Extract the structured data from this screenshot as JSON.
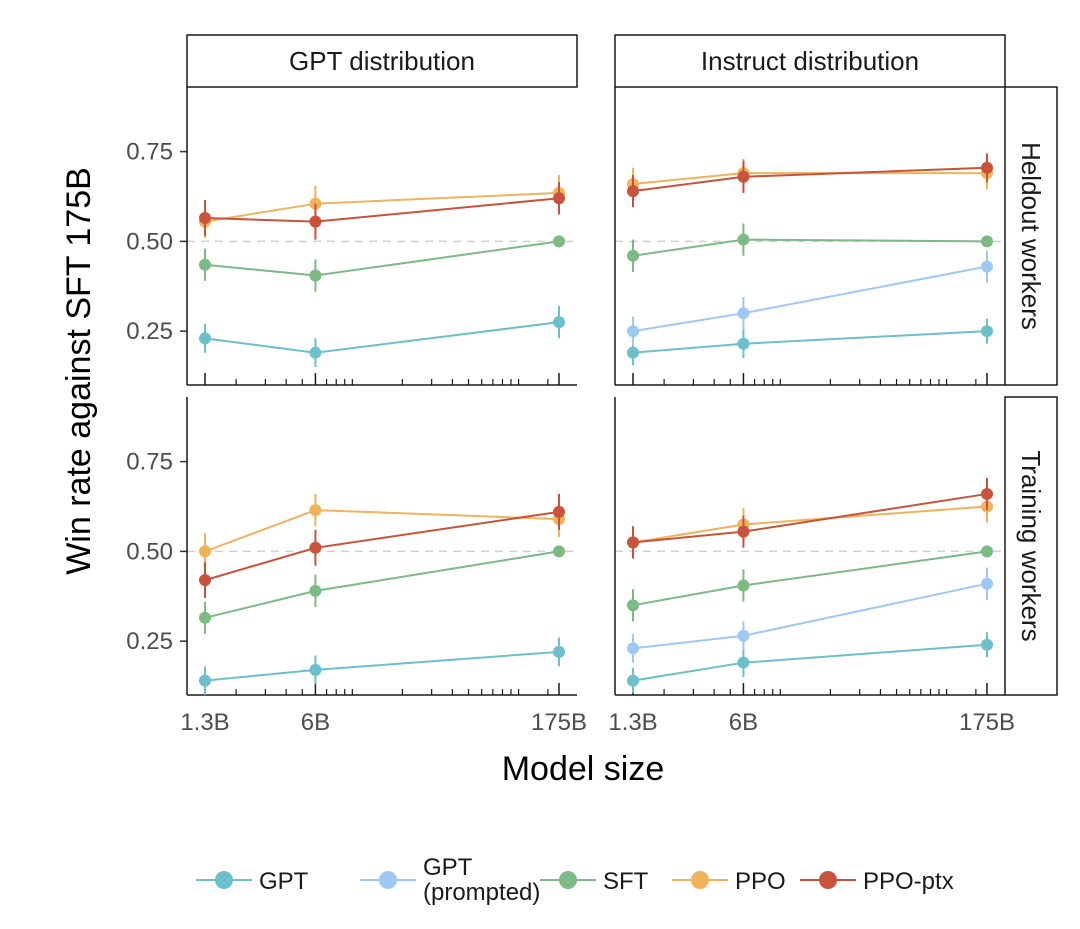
{
  "chart_data": {
    "type": "line",
    "layout": "facet-grid 2x2",
    "xlabel": "Model size",
    "ylabel": "Win rate against SFT 175B",
    "x_scale": "log",
    "x_ticks": [
      "1.3B",
      "6B",
      "175B"
    ],
    "y_ticks": [
      "0.25",
      "0.50",
      "0.75"
    ],
    "ylim": [
      0.1,
      0.93
    ],
    "reference_line": 0.5,
    "columns": [
      "GPT distribution",
      "Instruct distribution"
    ],
    "rows": [
      "Heldout workers",
      "Training workers"
    ],
    "legend": {
      "position": "bottom",
      "entries": [
        {
          "key": "GPT",
          "lines": [
            "GPT"
          ]
        },
        {
          "key": "GPT (prompted)",
          "lines": [
            "GPT",
            "(prompted)"
          ]
        },
        {
          "key": "SFT",
          "lines": [
            "SFT"
          ]
        },
        {
          "key": "PPO",
          "lines": [
            "PPO"
          ]
        },
        {
          "key": "PPO-ptx",
          "lines": [
            "PPO-ptx"
          ]
        }
      ]
    },
    "colors": {
      "GPT": "#6cc0cc",
      "GPT (prompted)": "#9ec9f5",
      "SFT": "#7cba84",
      "PPO": "#f0b25a",
      "PPO-ptx": "#c8533a"
    },
    "panels": [
      {
        "col": "GPT distribution",
        "row": "Heldout workers",
        "series": [
          {
            "key": "GPT",
            "x": [
              "1.3B",
              "6B",
              "175B"
            ],
            "y": [
              0.23,
              0.19,
              0.275
            ],
            "err": [
              0.04,
              0.04,
              0.045
            ]
          },
          {
            "key": "SFT",
            "x": [
              "1.3B",
              "6B",
              "175B"
            ],
            "y": [
              0.435,
              0.405,
              0.5
            ],
            "err": [
              0.045,
              0.045,
              0.0
            ]
          },
          {
            "key": "PPO",
            "x": [
              "1.3B",
              "6B",
              "175B"
            ],
            "y": [
              0.555,
              0.605,
              0.635
            ],
            "err": [
              0.045,
              0.05,
              0.05
            ]
          },
          {
            "key": "PPO-ptx",
            "x": [
              "1.3B",
              "6B",
              "175B"
            ],
            "y": [
              0.565,
              0.555,
              0.62
            ],
            "err": [
              0.05,
              0.05,
              0.045
            ]
          }
        ]
      },
      {
        "col": "Instruct distribution",
        "row": "Heldout workers",
        "series": [
          {
            "key": "GPT",
            "x": [
              "1.3B",
              "6B",
              "175B"
            ],
            "y": [
              0.19,
              0.215,
              0.25
            ],
            "err": [
              0.035,
              0.04,
              0.035
            ]
          },
          {
            "key": "GPT (prompted)",
            "x": [
              "1.3B",
              "6B",
              "175B"
            ],
            "y": [
              0.25,
              0.3,
              0.43
            ],
            "err": [
              0.04,
              0.045,
              0.045
            ]
          },
          {
            "key": "SFT",
            "x": [
              "1.3B",
              "6B",
              "175B"
            ],
            "y": [
              0.46,
              0.505,
              0.5
            ],
            "err": [
              0.045,
              0.045,
              0.0
            ]
          },
          {
            "key": "PPO",
            "x": [
              "1.3B",
              "6B",
              "175B"
            ],
            "y": [
              0.66,
              0.69,
              0.69
            ],
            "err": [
              0.045,
              0.04,
              0.045
            ]
          },
          {
            "key": "PPO-ptx",
            "x": [
              "1.3B",
              "6B",
              "175B"
            ],
            "y": [
              0.64,
              0.68,
              0.705
            ],
            "err": [
              0.045,
              0.045,
              0.04
            ]
          }
        ]
      },
      {
        "col": "GPT distribution",
        "row": "Training workers",
        "series": [
          {
            "key": "GPT",
            "x": [
              "1.3B",
              "6B",
              "175B"
            ],
            "y": [
              0.14,
              0.17,
              0.22
            ],
            "err": [
              0.04,
              0.04,
              0.04
            ]
          },
          {
            "key": "SFT",
            "x": [
              "1.3B",
              "6B",
              "175B"
            ],
            "y": [
              0.315,
              0.39,
              0.5
            ],
            "err": [
              0.045,
              0.045,
              0.0
            ]
          },
          {
            "key": "PPO",
            "x": [
              "1.3B",
              "6B",
              "175B"
            ],
            "y": [
              0.5,
              0.615,
              0.59
            ],
            "err": [
              0.05,
              0.045,
              0.05
            ]
          },
          {
            "key": "PPO-ptx",
            "x": [
              "1.3B",
              "6B",
              "175B"
            ],
            "y": [
              0.42,
              0.51,
              0.61
            ],
            "err": [
              0.05,
              0.05,
              0.05
            ]
          }
        ]
      },
      {
        "col": "Instruct distribution",
        "row": "Training workers",
        "series": [
          {
            "key": "GPT",
            "x": [
              "1.3B",
              "6B",
              "175B"
            ],
            "y": [
              0.14,
              0.19,
              0.24
            ],
            "err": [
              0.035,
              0.04,
              0.035
            ]
          },
          {
            "key": "GPT (prompted)",
            "x": [
              "1.3B",
              "6B",
              "175B"
            ],
            "y": [
              0.23,
              0.265,
              0.41
            ],
            "err": [
              0.04,
              0.04,
              0.045
            ]
          },
          {
            "key": "SFT",
            "x": [
              "1.3B",
              "6B",
              "175B"
            ],
            "y": [
              0.35,
              0.405,
              0.5
            ],
            "err": [
              0.045,
              0.045,
              0.0
            ]
          },
          {
            "key": "PPO",
            "x": [
              "1.3B",
              "6B",
              "175B"
            ],
            "y": [
              0.525,
              0.575,
              0.625
            ],
            "err": [
              0.045,
              0.045,
              0.045
            ]
          },
          {
            "key": "PPO-ptx",
            "x": [
              "1.3B",
              "6B",
              "175B"
            ],
            "y": [
              0.525,
              0.555,
              0.66
            ],
            "err": [
              0.045,
              0.045,
              0.045
            ]
          }
        ]
      }
    ]
  }
}
